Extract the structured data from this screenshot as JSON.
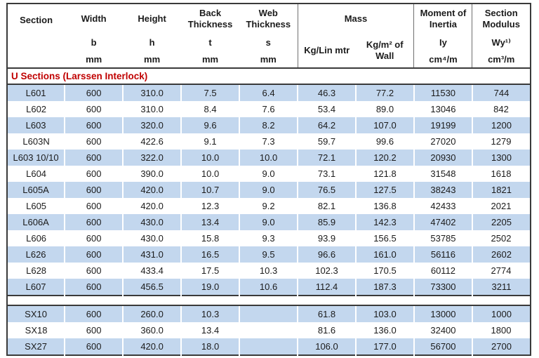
{
  "colors": {
    "row_blue": "#c3d7ee",
    "group_title_red": "#c00000",
    "border_dark": "#3a3a3a"
  },
  "header": {
    "section": "Section",
    "width": "Width",
    "width_sym": "b",
    "height": "Height",
    "height_sym": "h",
    "back_thickness": "Back Thickness",
    "back_sym": "t",
    "web_thickness": "Web Thickness",
    "web_sym": "s",
    "mass": "Mass",
    "mass_lin": "Kg/Lin mtr",
    "mass_wall": "Kg/m² of Wall",
    "moment_of_inertia": "Moment of Inertia",
    "moi_sym": "Iy",
    "moi_unit": "cm⁴/m",
    "section_modulus": "Section Modulus",
    "sm_sym": "Wy¹⁾",
    "sm_unit": "cm³/m",
    "mm": "mm"
  },
  "group_title": "U Sections (Larssen Interlock)",
  "rows": [
    {
      "section": "L601",
      "b": "600",
      "h": "310.0",
      "t": "7.5",
      "s": "6.4",
      "kg_lin": "46.3",
      "kg_wall": "77.2",
      "iy": "11530",
      "wy": "744"
    },
    {
      "section": "L602",
      "b": "600",
      "h": "310.0",
      "t": "8.4",
      "s": "7.6",
      "kg_lin": "53.4",
      "kg_wall": "89.0",
      "iy": "13046",
      "wy": "842"
    },
    {
      "section": "L603",
      "b": "600",
      "h": "320.0",
      "t": "9.6",
      "s": "8.2",
      "kg_lin": "64.2",
      "kg_wall": "107.0",
      "iy": "19199",
      "wy": "1200"
    },
    {
      "section": "L603N",
      "b": "600",
      "h": "422.6",
      "t": "9.1",
      "s": "7.3",
      "kg_lin": "59.7",
      "kg_wall": "99.6",
      "iy": "27020",
      "wy": "1279"
    },
    {
      "section": "L603 10/10",
      "b": "600",
      "h": "322.0",
      "t": "10.0",
      "s": "10.0",
      "kg_lin": "72.1",
      "kg_wall": "120.2",
      "iy": "20930",
      "wy": "1300"
    },
    {
      "section": "L604",
      "b": "600",
      "h": "390.0",
      "t": "10.0",
      "s": "9.0",
      "kg_lin": "73.1",
      "kg_wall": "121.8",
      "iy": "31548",
      "wy": "1618"
    },
    {
      "section": "L605A",
      "b": "600",
      "h": "420.0",
      "t": "10.7",
      "s": "9.0",
      "kg_lin": "76.5",
      "kg_wall": "127.5",
      "iy": "38243",
      "wy": "1821"
    },
    {
      "section": "L605",
      "b": "600",
      "h": "420.0",
      "t": "12.3",
      "s": "9.2",
      "kg_lin": "82.1",
      "kg_wall": "136.8",
      "iy": "42433",
      "wy": "2021"
    },
    {
      "section": "L606A",
      "b": "600",
      "h": "430.0",
      "t": "13.4",
      "s": "9.0",
      "kg_lin": "85.9",
      "kg_wall": "142.3",
      "iy": "47402",
      "wy": "2205"
    },
    {
      "section": "L606",
      "b": "600",
      "h": "430.0",
      "t": "15.8",
      "s": "9.3",
      "kg_lin": "93.9",
      "kg_wall": "156.5",
      "iy": "53785",
      "wy": "2502"
    },
    {
      "section": "L626",
      "b": "600",
      "h": "431.0",
      "t": "16.5",
      "s": "9.5",
      "kg_lin": "96.6",
      "kg_wall": "161.0",
      "iy": "56116",
      "wy": "2602"
    },
    {
      "section": "L628",
      "b": "600",
      "h": "433.4",
      "t": "17.5",
      "s": "10.3",
      "kg_lin": "102.3",
      "kg_wall": "170.5",
      "iy": "60112",
      "wy": "2774"
    },
    {
      "section": "L607",
      "b": "600",
      "h": "456.5",
      "t": "19.0",
      "s": "10.6",
      "kg_lin": "112.4",
      "kg_wall": "187.3",
      "iy": "73300",
      "wy": "3211"
    }
  ],
  "sx_rows": [
    {
      "section": "SX10",
      "b": "600",
      "h": "260.0",
      "t": "10.3",
      "s": "",
      "kg_lin": "61.8",
      "kg_wall": "103.0",
      "iy": "13000",
      "wy": "1000"
    },
    {
      "section": "SX18",
      "b": "600",
      "h": "360.0",
      "t": "13.4",
      "s": "",
      "kg_lin": "81.6",
      "kg_wall": "136.0",
      "iy": "32400",
      "wy": "1800"
    },
    {
      "section": "SX27",
      "b": "600",
      "h": "420.0",
      "t": "18.0",
      "s": "",
      "kg_lin": "106.0",
      "kg_wall": "177.0",
      "iy": "56700",
      "wy": "2700"
    }
  ]
}
